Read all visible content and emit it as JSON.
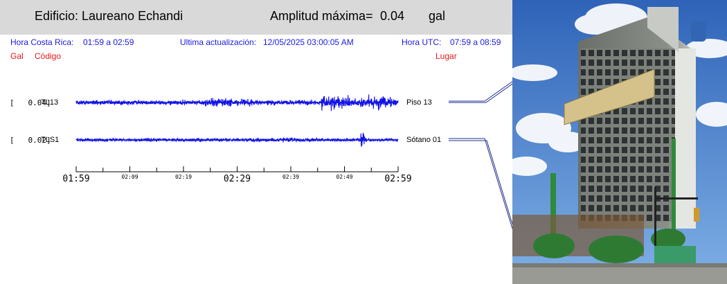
{
  "header": {
    "building_label": "Edificio:",
    "building_name": "Laureano Echandi",
    "amplitude_label": "Amplitud máxima=",
    "amplitude_value": "0.04",
    "amplitude_unit": "gal"
  },
  "info": {
    "local_time_label": "Hora Costa Rica:",
    "local_time_range": "01:59 a 02:59",
    "update_label": "Ultima actualización:",
    "update_value": "12/05/2025 03:00:05 AM",
    "utc_label": "Hora UTC:",
    "utc_range": "07:59 a 08:59"
  },
  "columns": {
    "gal": "Gal",
    "code": "Código",
    "place": "Lugar"
  },
  "colors": {
    "trace": "#1414e6",
    "header_bg": "#d9d9d9",
    "info_text": "#1a1adf",
    "column_text": "#e01818",
    "leader_line": "#1f2f8f"
  },
  "chart_data": {
    "type": "line",
    "channels": [
      {
        "gal_label": "[   0.04]",
        "code": "TL13",
        "location": "Piso 13",
        "peak_gal": 0.04
      },
      {
        "gal_label": "[   0.02]",
        "code": "TLS1",
        "location": "Sótano 01",
        "peak_gal": 0.02
      }
    ],
    "x_ticks": [
      "01:59",
      "02:09",
      "02:19",
      "02:29",
      "02:39",
      "02:49",
      "02:59"
    ],
    "x_range": [
      "01:59",
      "02:59"
    ]
  }
}
